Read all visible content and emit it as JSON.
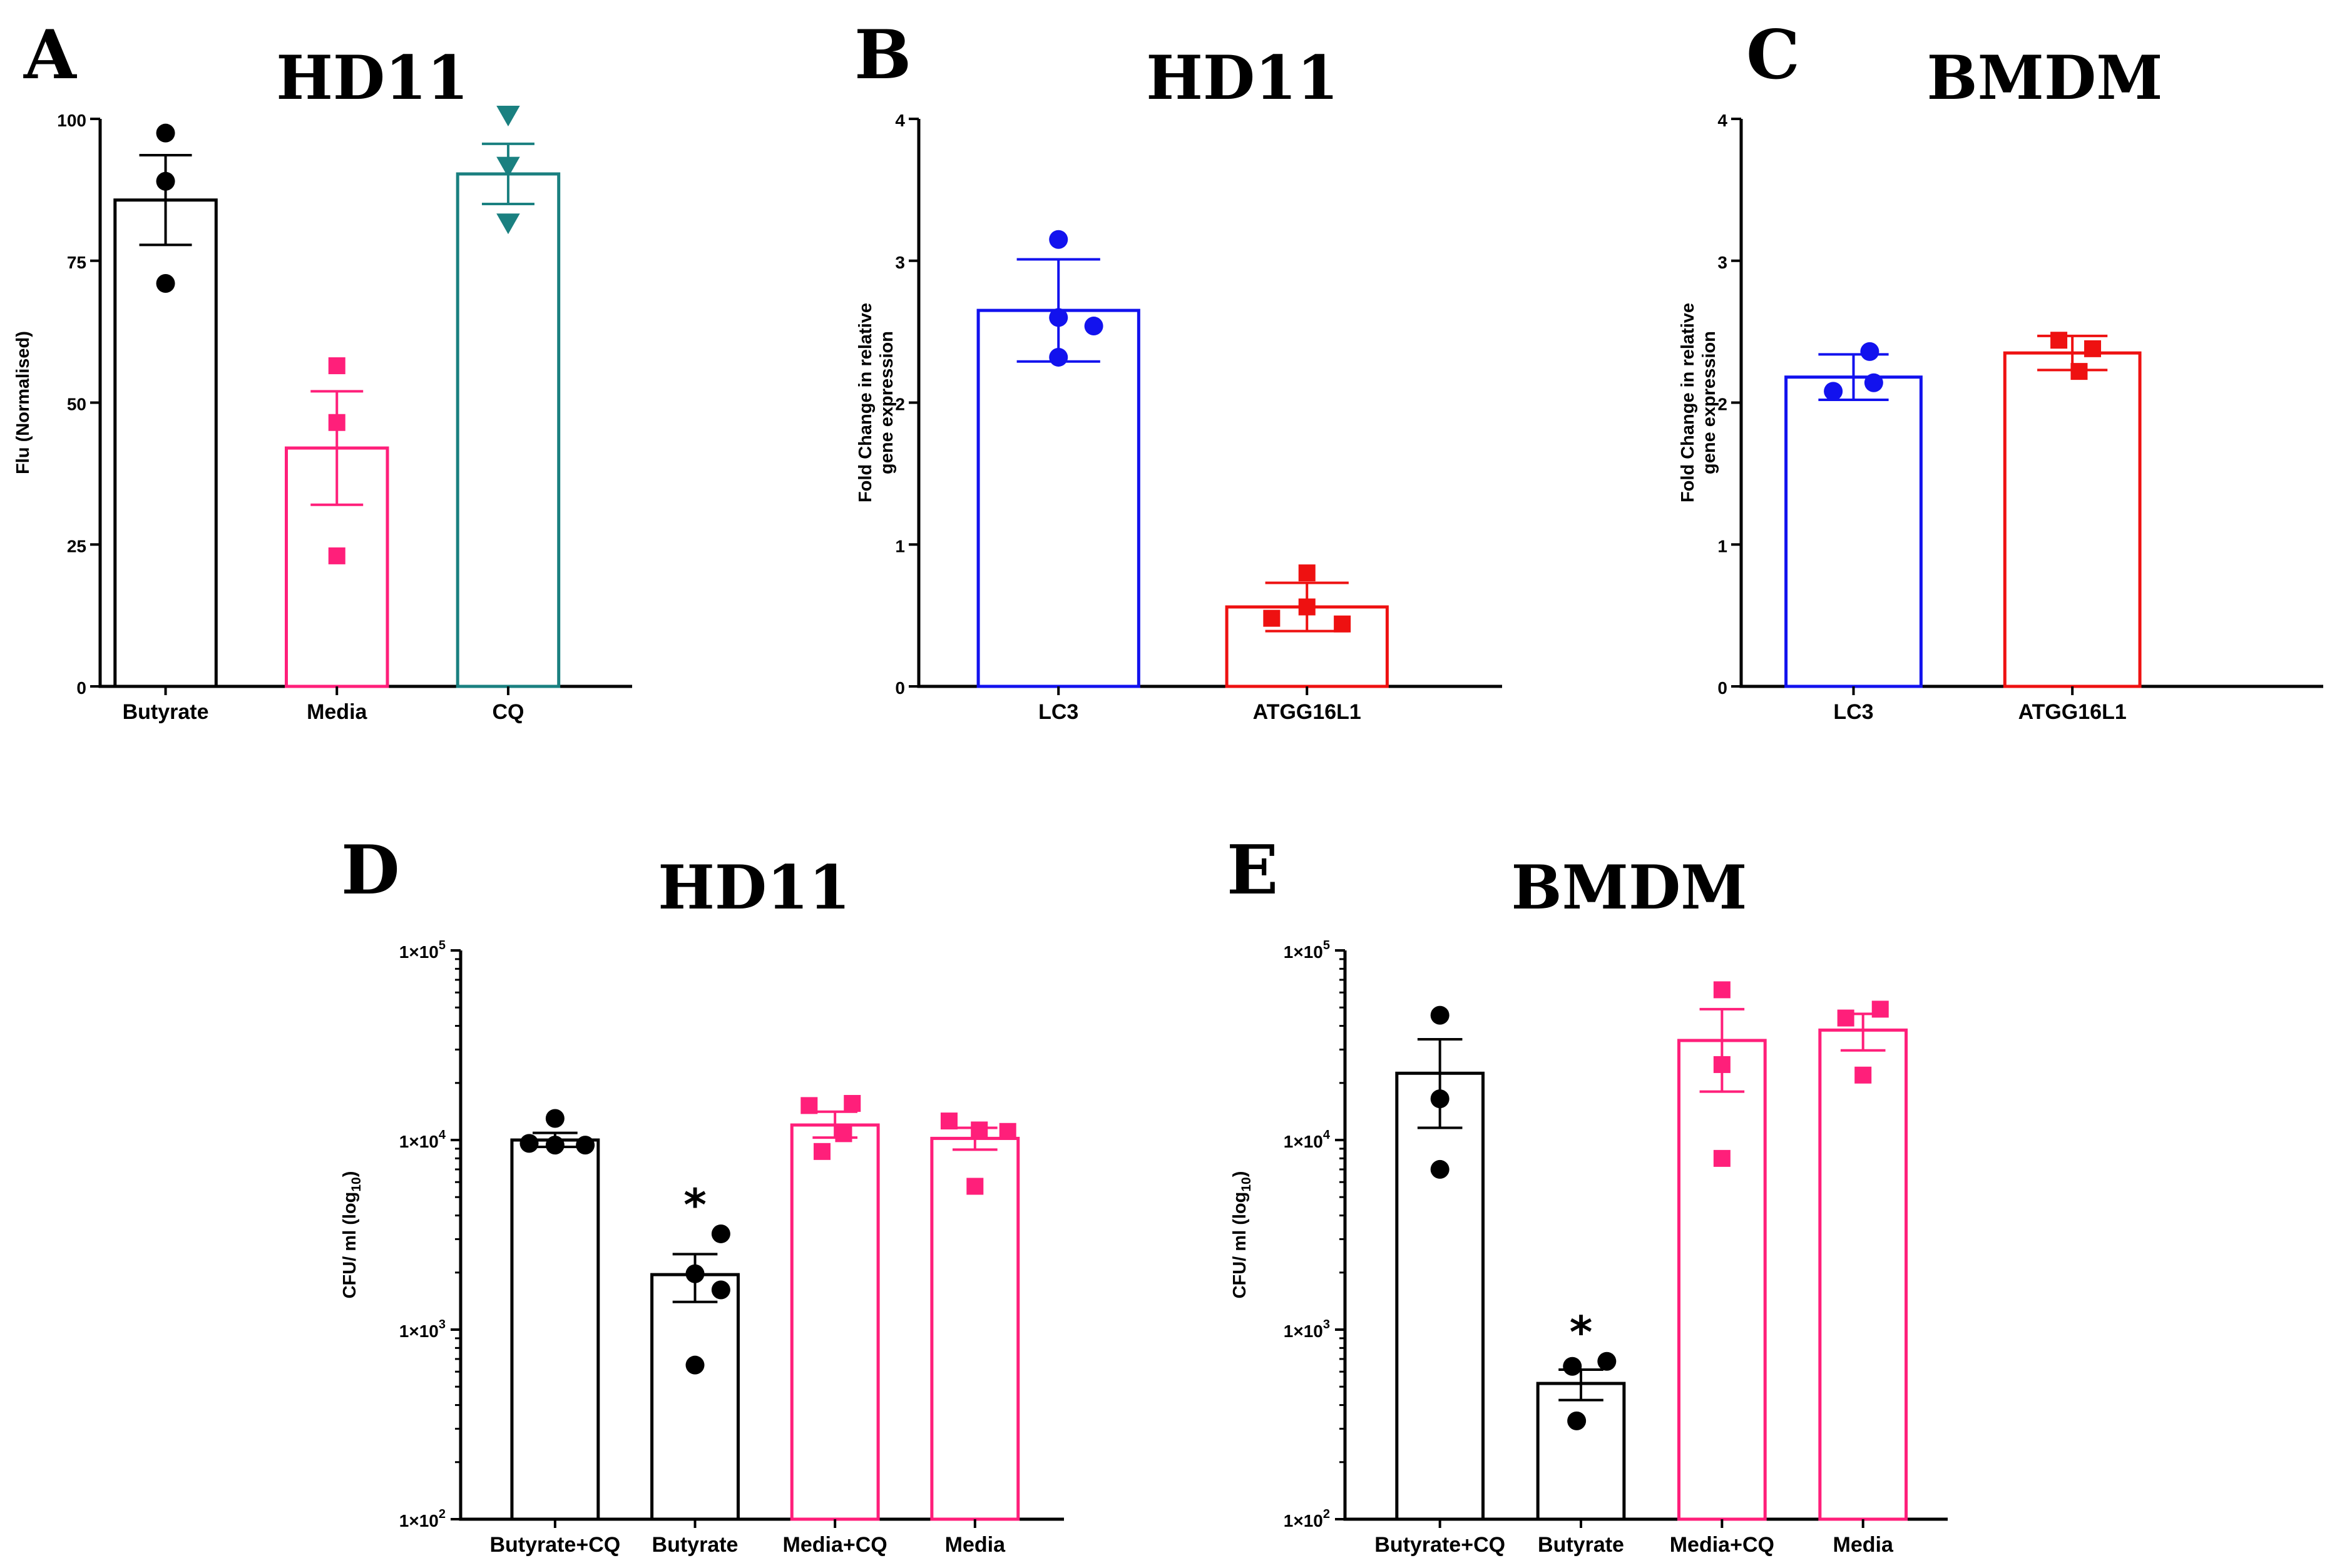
{
  "chart_data": [
    {
      "id": "A",
      "type": "bar",
      "panel_letter": "A",
      "title": "HD11",
      "ylabel": "Flu (Normalised)",
      "ylim": [
        0,
        100
      ],
      "yscale": "linear",
      "yticks": [
        0,
        25,
        50,
        75,
        100
      ],
      "ytick_labels": [
        "0",
        "25",
        "50",
        "75",
        "100"
      ],
      "categories": [
        "Butyrate",
        "Media",
        "CQ"
      ],
      "values": [
        85.7,
        42.0,
        90.3
      ],
      "errors": [
        7.9,
        10.0,
        5.3
      ],
      "points": [
        [
          97.5,
          89.0,
          71.0
        ],
        [
          56.5,
          46.5,
          23.0
        ],
        [
          100.5,
          91.5,
          81.5
        ]
      ],
      "colors": [
        "#000000",
        "#ff1f7a",
        "#1a8080"
      ],
      "markers": [
        "circle",
        "square",
        "triangle-down"
      ]
    },
    {
      "id": "B",
      "type": "bar",
      "panel_letter": "B",
      "title": "HD11",
      "ylabel": [
        "Fold Change in relative",
        "gene expression"
      ],
      "ylim": [
        0,
        4
      ],
      "yscale": "linear",
      "yticks": [
        0,
        1,
        2,
        3,
        4
      ],
      "ytick_labels": [
        "0",
        "1",
        "2",
        "3",
        "4"
      ],
      "categories": [
        "LC3",
        "ATGG16L1"
      ],
      "values": [
        2.65,
        0.56
      ],
      "errors": [
        0.36,
        0.17
      ],
      "points": [
        [
          3.15,
          2.6,
          2.54,
          2.32
        ],
        [
          0.8,
          0.56,
          0.48,
          0.44
        ]
      ],
      "colors": [
        "#1212ee",
        "#ee1111"
      ],
      "markers": [
        "circle",
        "square"
      ]
    },
    {
      "id": "C",
      "type": "bar",
      "panel_letter": "C",
      "title": "BMDM",
      "ylabel": [
        "Fold Change in relative",
        "gene expression"
      ],
      "ylim": [
        0,
        4
      ],
      "yscale": "linear",
      "yticks": [
        0,
        1,
        2,
        3,
        4
      ],
      "ytick_labels": [
        "0",
        "1",
        "2",
        "3",
        "4"
      ],
      "categories": [
        "LC3",
        "ATGG16L1"
      ],
      "values": [
        2.18,
        2.35
      ],
      "errors": [
        0.16,
        0.12
      ],
      "points": [
        [
          2.36,
          2.14,
          2.08
        ],
        [
          2.44,
          2.38,
          2.22
        ]
      ],
      "colors": [
        "#1212ee",
        "#ee1111"
      ],
      "markers": [
        "circle",
        "square"
      ]
    },
    {
      "id": "D",
      "type": "bar",
      "panel_letter": "D",
      "title": "HD11",
      "ylabel": "CFU/ ml (log",
      "ylabel_sub": "10",
      "ylabel_end": ")",
      "ylim": [
        100,
        100000
      ],
      "yscale": "log",
      "yticks": [
        100,
        1000,
        10000,
        100000
      ],
      "ytick_mant": [
        "1×10",
        "1×10",
        "1×10",
        "1×10"
      ],
      "ytick_exp": [
        "2",
        "3",
        "4",
        "5"
      ],
      "categories": [
        "Butyrate+CQ",
        "Butyrate",
        "Media+CQ",
        "Media"
      ],
      "values": [
        10000,
        1950,
        12000,
        10200
      ],
      "errors_low": [
        9200,
        1400,
        10300,
        8900
      ],
      "errors_high": [
        10900,
        2500,
        14100,
        11600
      ],
      "points": [
        [
          13000,
          9600,
          9400,
          9400
        ],
        [
          3200,
          1970,
          1620,
          650
        ],
        [
          15600,
          15200,
          10800,
          8700
        ],
        [
          12600,
          11100,
          11300,
          5700
        ]
      ],
      "colors": [
        "#000000",
        "#000000",
        "#ff1f7a",
        "#ff1f7a"
      ],
      "markers": [
        "circle",
        "circle",
        "square",
        "square"
      ],
      "significance": [
        "",
        "*",
        "",
        ""
      ]
    },
    {
      "id": "E",
      "type": "bar",
      "panel_letter": "E",
      "title": "BMDM",
      "ylabel": "CFU/ ml (log",
      "ylabel_sub": "10",
      "ylabel_end": ")",
      "ylim": [
        100,
        100000
      ],
      "yscale": "log",
      "yticks": [
        100,
        1000,
        10000,
        100000
      ],
      "ytick_mant": [
        "1×10",
        "1×10",
        "1×10",
        "1×10"
      ],
      "ytick_exp": [
        "2",
        "3",
        "4",
        "5"
      ],
      "categories": [
        "Butyrate+CQ",
        "Butyrate",
        "Media+CQ",
        "Media"
      ],
      "values": [
        22500,
        520,
        33500,
        38000
      ],
      "errors_low": [
        11600,
        425,
        18000,
        29700
      ],
      "errors_high": [
        34000,
        615,
        49000,
        46300
      ],
      "points": [
        [
          45500,
          16500,
          7000
        ],
        [
          680,
          640,
          330
        ],
        [
          62000,
          25000,
          8000
        ],
        [
          49000,
          44000,
          22000
        ]
      ],
      "colors": [
        "#000000",
        "#000000",
        "#ff1f7a",
        "#ff1f7a"
      ],
      "markers": [
        "circle",
        "circle",
        "square",
        "square"
      ],
      "significance": [
        "",
        "*",
        "",
        ""
      ]
    }
  ]
}
